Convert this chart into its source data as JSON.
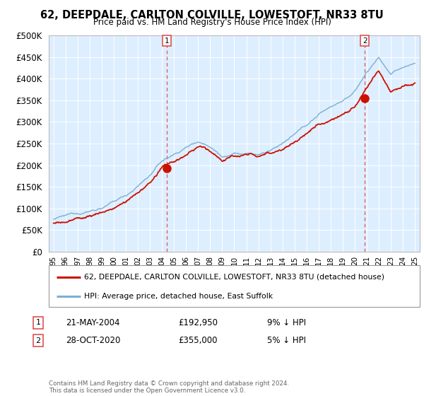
{
  "title": "62, DEEPDALE, CARLTON COLVILLE, LOWESTOFT, NR33 8TU",
  "subtitle": "Price paid vs. HM Land Registry's House Price Index (HPI)",
  "legend_line1": "62, DEEPDALE, CARLTON COLVILLE, LOWESTOFT, NR33 8TU (detached house)",
  "legend_line2": "HPI: Average price, detached house, East Suffolk",
  "annotation1": {
    "label": "1",
    "date": "21-MAY-2004",
    "price": "£192,950",
    "pct": "9% ↓ HPI"
  },
  "annotation2": {
    "label": "2",
    "date": "28-OCT-2020",
    "price": "£355,000",
    "pct": "5% ↓ HPI"
  },
  "footnote": "Contains HM Land Registry data © Crown copyright and database right 2024.\nThis data is licensed under the Open Government Licence v3.0.",
  "hpi_color": "#7bafd4",
  "price_color": "#cc1100",
  "dashed_color": "#dd4444",
  "marker1_x": 2004.38,
  "marker1_y": 192950,
  "marker2_x": 2020.83,
  "marker2_y": 355000,
  "bg_color": "#ddeeff",
  "ylim": [
    0,
    500000
  ],
  "yticks": [
    0,
    50000,
    100000,
    150000,
    200000,
    250000,
    300000,
    350000,
    400000,
    450000,
    500000
  ],
  "xlim": [
    1994.6,
    2025.4
  ],
  "xticks": [
    1995,
    1996,
    1997,
    1998,
    1999,
    2000,
    2001,
    2002,
    2003,
    2004,
    2005,
    2006,
    2007,
    2008,
    2009,
    2010,
    2011,
    2012,
    2013,
    2014,
    2015,
    2016,
    2017,
    2018,
    2019,
    2020,
    2021,
    2022,
    2023,
    2024,
    2025
  ],
  "xtick_labels": [
    "95",
    "96",
    "97",
    "98",
    "99",
    "00",
    "01",
    "02",
    "03",
    "04",
    "05",
    "06",
    "07",
    "08",
    "09",
    "10",
    "11",
    "12",
    "13",
    "14",
    "15",
    "16",
    "17",
    "18",
    "19",
    "20",
    "21",
    "22",
    "23",
    "24",
    "25"
  ]
}
